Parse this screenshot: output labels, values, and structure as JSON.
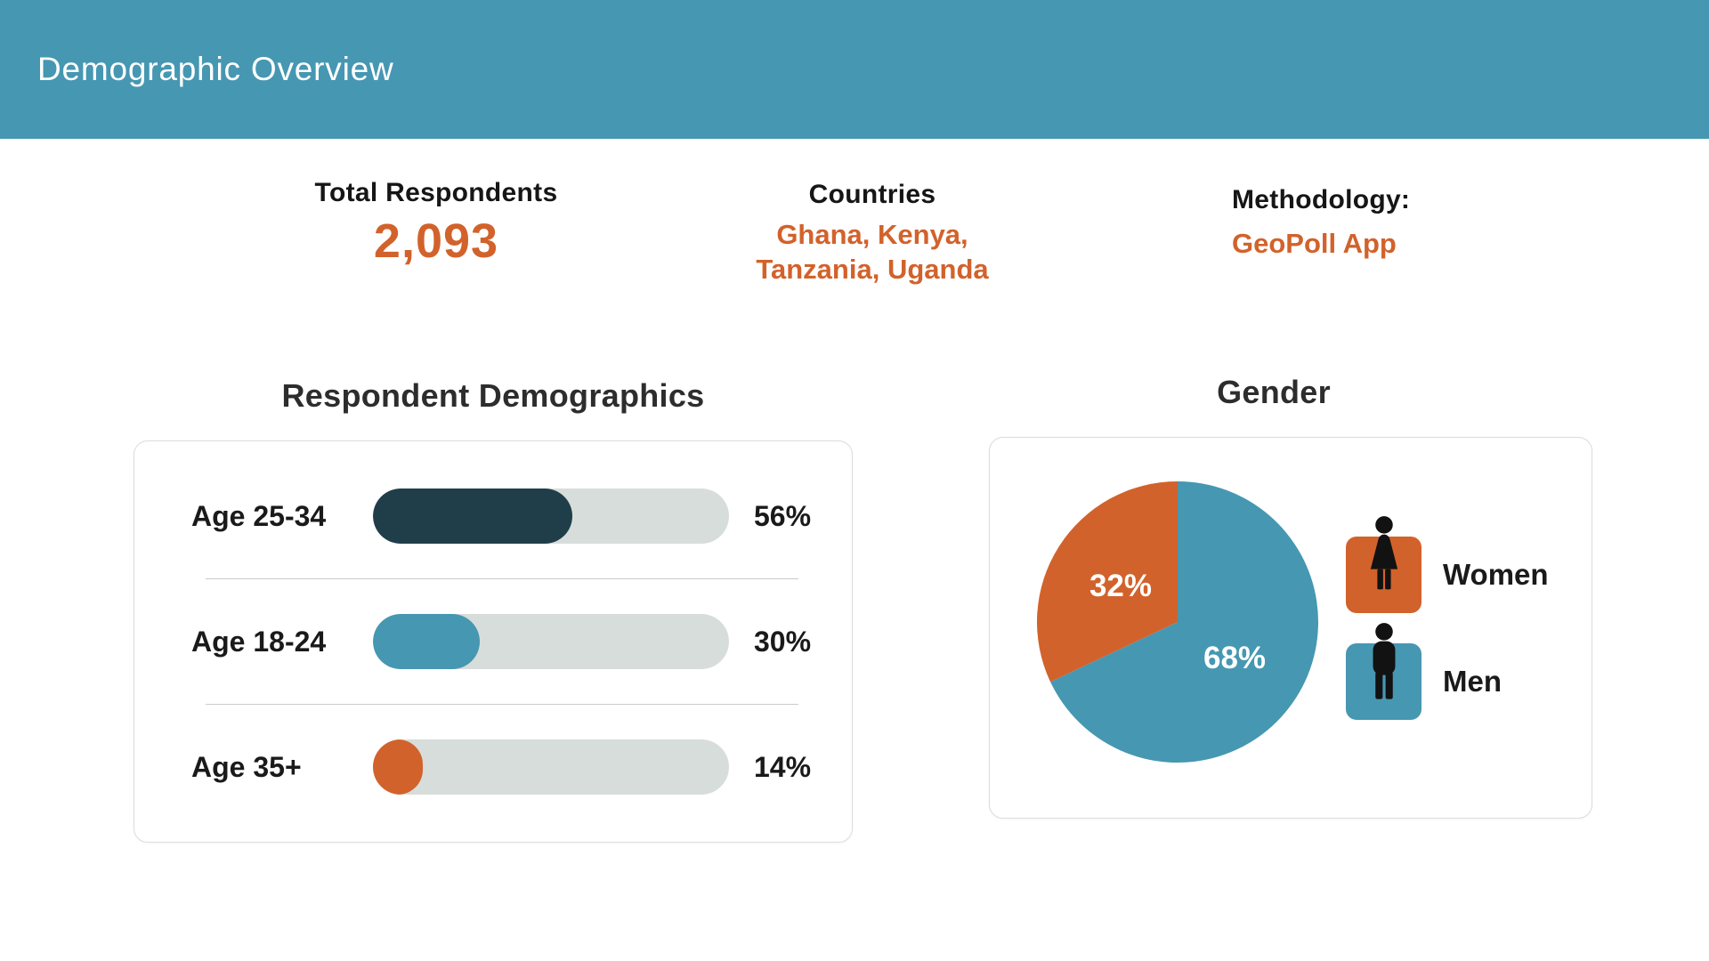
{
  "colors": {
    "header_bg": "#4697B2",
    "accent_orange": "#D2622B",
    "dark_slate": "#203E4A",
    "blue": "#4697B2",
    "track_gray": "#D7DDDA"
  },
  "header": {
    "title": "Demographic Overview"
  },
  "stats": [
    {
      "label": "Total Respondents",
      "value": "2,093"
    },
    {
      "label": "Countries",
      "value": "Ghana, Kenya,\nTanzania, Uganda"
    },
    {
      "label": "Methodology:",
      "value": "GeoPoll App"
    }
  ],
  "chart_data": [
    {
      "type": "bar",
      "title": "Respondent Demographics",
      "orientation": "horizontal",
      "categories": [
        "Age 25-34",
        "Age 18-24",
        "Age 35+"
      ],
      "values": [
        56,
        30,
        14
      ],
      "value_labels": [
        "56%",
        "30%",
        "14%"
      ],
      "bar_colors": [
        "#203E4A",
        "#4697B2",
        "#D2622B"
      ],
      "xlim": [
        0,
        100
      ],
      "grid": false
    },
    {
      "type": "pie",
      "title": "Gender",
      "categories": [
        "Men",
        "Women"
      ],
      "values": [
        68,
        32
      ],
      "slice_labels": [
        "68%",
        "32%"
      ],
      "slice_colors": [
        "#4697B2",
        "#D2622B"
      ],
      "start_angle_deg": 0,
      "direction": "clockwise",
      "legend_position": "right",
      "legend": [
        {
          "label": "Women",
          "icon": "woman-icon",
          "color": "#D2622B"
        },
        {
          "label": "Men",
          "icon": "man-icon",
          "color": "#4697B2"
        }
      ]
    }
  ]
}
